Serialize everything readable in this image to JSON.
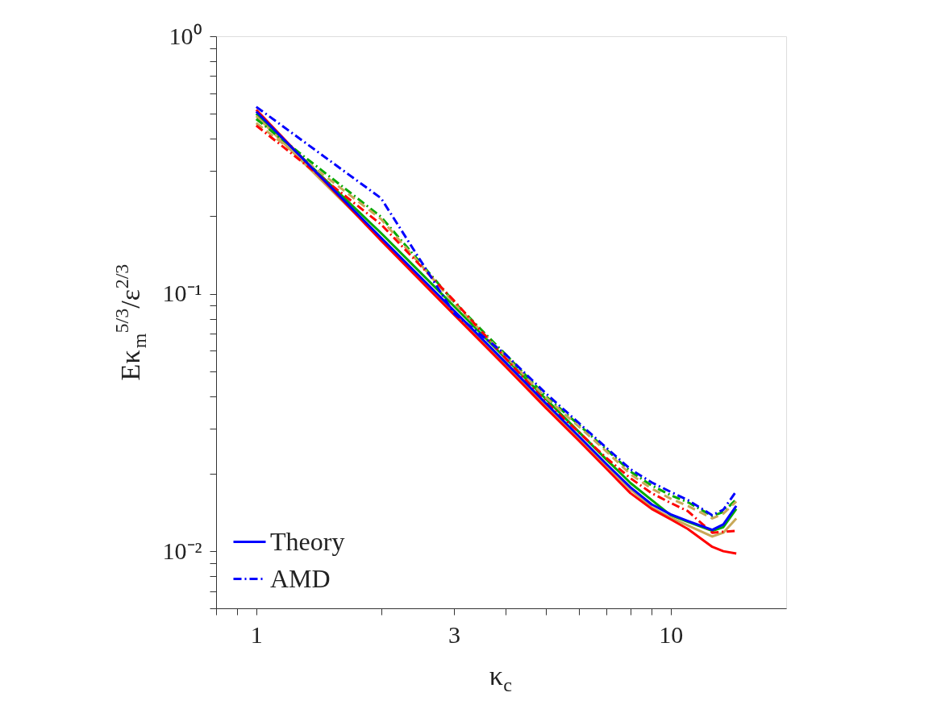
{
  "chart_data": {
    "type": "line",
    "xlabel": "κ$_{c}$",
    "ylabel": "Eκ$_{m}$$^{5/3}$/ε$^{2/3}$",
    "log": "xy",
    "xlim": [
      0.8,
      19
    ],
    "ylim": [
      0.006,
      1
    ],
    "xticks": [
      {
        "value": 0.8,
        "label": null
      },
      {
        "value": 0.9,
        "label": null
      },
      1,
      {
        "value": 2,
        "label": null
      },
      3,
      {
        "value": 4,
        "label": null
      },
      {
        "value": 5,
        "label": null
      },
      {
        "value": 6,
        "label": null
      },
      {
        "value": 7,
        "label": null
      },
      {
        "value": 8,
        "label": null
      },
      {
        "value": 9,
        "label": null
      },
      10
    ],
    "yticks": [
      {
        "value": 0.006,
        "label": null
      },
      {
        "value": 0.007,
        "label": null
      },
      {
        "value": 0.008,
        "label": null
      },
      {
        "value": 0.009,
        "label": null
      },
      {
        "value": 0.01,
        "label": "10⁻²"
      },
      {
        "value": 0.02,
        "label": null
      },
      {
        "value": 0.03,
        "label": null
      },
      {
        "value": 0.04,
        "label": null
      },
      {
        "value": 0.05,
        "label": null
      },
      {
        "value": 0.06,
        "label": null
      },
      {
        "value": 0.07,
        "label": null
      },
      {
        "value": 0.08,
        "label": null
      },
      {
        "value": 0.09,
        "label": null
      },
      {
        "value": 0.1,
        "label": "10⁻¹"
      },
      {
        "value": 0.2,
        "label": null
      },
      {
        "value": 0.3,
        "label": null
      },
      {
        "value": 0.4,
        "label": null
      },
      {
        "value": 0.5,
        "label": null
      },
      {
        "value": 0.6,
        "label": null
      },
      {
        "value": 0.7,
        "label": null
      },
      {
        "value": 0.8,
        "label": null
      },
      {
        "value": 0.9,
        "label": null
      },
      {
        "value": 1,
        "label": "10⁰"
      }
    ],
    "grid": false,
    "legend": "bottom left",
    "marker": "none",
    "x": [
      1,
      2,
      3,
      4,
      5,
      6,
      7,
      8,
      9,
      10,
      11,
      12.6,
      13.4,
      14.4
    ],
    "series": [
      {
        "name": "Theory",
        "color": "#0000ff",
        "line_style": "solid",
        "values": [
          0.51,
          0.165,
          0.086,
          0.054,
          0.0375,
          0.028,
          0.0218,
          0.0177,
          0.0152,
          0.0139,
          0.0131,
          0.0121,
          0.0127,
          0.015
        ]
      },
      {
        "name": "AMD",
        "color": "#0000ff",
        "line_style": "dashdot",
        "values": [
          0.532,
          0.235,
          0.084,
          0.058,
          0.041,
          0.0315,
          0.0252,
          0.0208,
          0.0185,
          0.017,
          0.0158,
          0.0138,
          0.0145,
          0.0171
        ]
      },
      {
        "color": "#00aa00",
        "line_style": "solid",
        "values": [
          0.5,
          0.172,
          0.0895,
          0.056,
          0.039,
          0.0291,
          0.0227,
          0.0184,
          0.0158,
          0.0138,
          0.013,
          0.012,
          0.0124,
          0.0146
        ]
      },
      {
        "color": "#c8a858",
        "line_style": "solid",
        "values": [
          0.49,
          0.163,
          0.085,
          0.053,
          0.037,
          0.0276,
          0.0215,
          0.0174,
          0.0148,
          0.0135,
          0.0126,
          0.0114,
          0.0118,
          0.0134
        ]
      },
      {
        "color": "#ff0000",
        "line_style": "solid",
        "values": [
          0.518,
          0.161,
          0.083,
          0.052,
          0.036,
          0.0269,
          0.0209,
          0.0168,
          0.0146,
          0.0133,
          0.0122,
          0.0104,
          0.01,
          0.0098
        ]
      },
      {
        "color": "#00aa00",
        "line_style": "dashdot",
        "values": [
          0.477,
          0.199,
          0.093,
          0.058,
          0.04,
          0.031,
          0.0248,
          0.0204,
          0.018,
          0.0165,
          0.0155,
          0.0137,
          0.0142,
          0.0159
        ]
      },
      {
        "color": "#c8a858",
        "line_style": "dashed",
        "values": [
          0.46,
          0.195,
          0.092,
          0.057,
          0.0395,
          0.0305,
          0.0244,
          0.0199,
          0.0175,
          0.016,
          0.015,
          0.0134,
          0.014,
          0.0156
        ]
      },
      {
        "color": "#ff0000",
        "line_style": "dashdot",
        "values": [
          0.45,
          0.186,
          0.094,
          0.056,
          0.038,
          0.029,
          0.023,
          0.0192,
          0.0168,
          0.0154,
          0.0143,
          0.0118,
          0.0119,
          0.012
        ]
      }
    ]
  }
}
